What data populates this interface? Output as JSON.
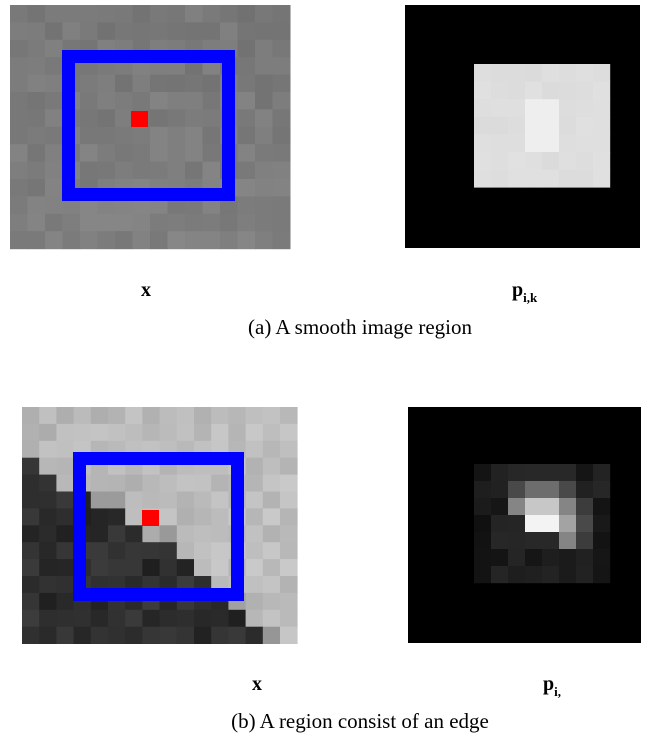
{
  "figures": [
    {
      "left_label": "x",
      "right_label": {
        "main": "p",
        "sub": "i,k"
      },
      "caption": "(a) A smooth image region"
    },
    {
      "left_label": "x",
      "right_label": {
        "main": "p",
        "sub": "i,"
      },
      "caption": "(b)   A region consist of an edge"
    }
  ]
}
